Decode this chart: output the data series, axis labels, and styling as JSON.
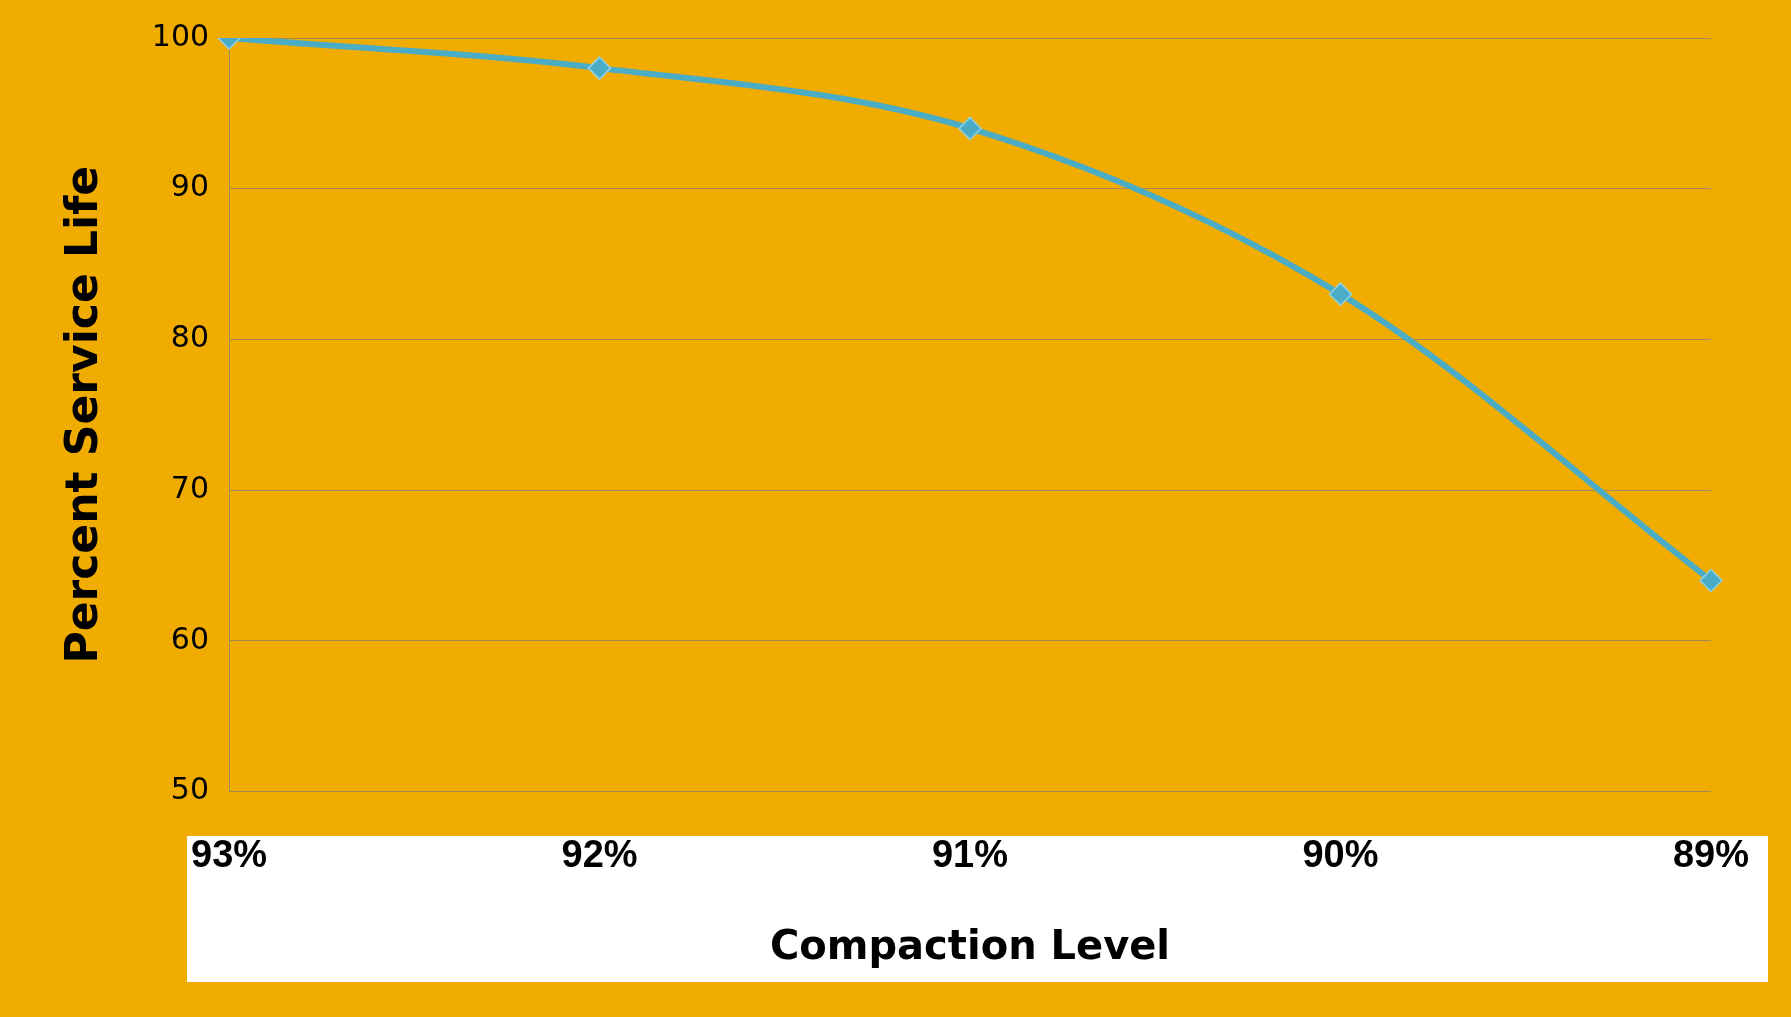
{
  "chart_data": {
    "type": "line",
    "xlabel": "Compaction Level",
    "ylabel": "Percent Service Life",
    "categories": [
      "93%",
      "92%",
      "91%",
      "90%",
      "89%"
    ],
    "series": [
      {
        "color": "#4bacc6",
        "values": [
          100,
          98,
          94,
          83,
          64
        ]
      }
    ],
    "ylim": [
      50,
      100
    ],
    "yticks": [
      50,
      60,
      70,
      80,
      90,
      100
    ],
    "grid": "y",
    "legend": false,
    "marker": "diamond",
    "line_style": "solid"
  }
}
